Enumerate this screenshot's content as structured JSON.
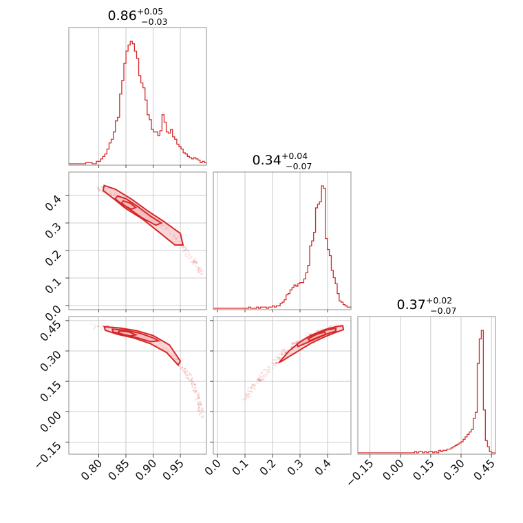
{
  "chart_data": {
    "type": "corner",
    "color": "#d62728",
    "contour_fill": "#f3b8bb",
    "grid": true,
    "parameters": [
      {
        "id": "p0",
        "title": {
          "median": "0.86",
          "plus": "+0.05",
          "minus": "−0.03"
        },
        "range": [
          0.745,
          0.998
        ],
        "ticks": [
          {
            "v": 0.8,
            "label": "0.80"
          },
          {
            "v": 0.85,
            "label": "0.85"
          },
          {
            "v": 0.9,
            "label": "0.90"
          },
          {
            "v": 0.95,
            "label": "0.95"
          }
        ],
        "hist": {
          "x0": 0.745,
          "x1": 0.998,
          "counts": [
            0,
            0,
            0,
            0,
            0,
            0,
            0,
            0,
            0.01,
            0.01,
            0.01,
            0,
            0,
            0.02,
            0.02,
            0.04,
            0.06,
            0.08,
            0.12,
            0.17,
            0.2,
            0.26,
            0.35,
            0.38,
            0.57,
            0.68,
            0.82,
            0.92,
            0.97,
            1.0,
            0.98,
            0.92,
            0.86,
            0.72,
            0.66,
            0.62,
            0.52,
            0.4,
            0.36,
            0.28,
            0.26,
            0.26,
            0.23,
            0.27,
            0.4,
            0.34,
            0.26,
            0.25,
            0.28,
            0.22,
            0.2,
            0.16,
            0.14,
            0.12,
            0.09,
            0.08,
            0.06,
            0.05,
            0.04,
            0.05,
            0.04,
            0.03,
            0.01,
            0.02,
            0.01
          ]
        }
      },
      {
        "id": "p1",
        "title": {
          "median": "0.34",
          "plus": "+0.04",
          "minus": "−0.07"
        },
        "range": [
          -0.015,
          0.485
        ],
        "ticks": [
          {
            "v": 0.0,
            "label": "0.0"
          },
          {
            "v": 0.1,
            "label": "0.1"
          },
          {
            "v": 0.2,
            "label": "0.2"
          },
          {
            "v": 0.3,
            "label": "0.3"
          },
          {
            "v": 0.4,
            "label": "0.4"
          }
        ],
        "hist": {
          "x0": -0.015,
          "x1": 0.485,
          "counts": [
            0,
            0,
            0,
            0,
            0,
            0,
            0,
            0,
            0,
            0,
            0,
            0,
            0,
            0,
            0,
            0,
            0,
            0,
            0.01,
            0,
            0,
            0,
            0.01,
            0,
            0.01,
            0.01,
            0.01,
            0,
            0.01,
            0.01,
            0.02,
            0.01,
            0.02,
            0.02,
            0.04,
            0.05,
            0.07,
            0.11,
            0.12,
            0.15,
            0.17,
            0.19,
            0.18,
            0.2,
            0.21,
            0.21,
            0.24,
            0.29,
            0.35,
            0.51,
            0.55,
            0.62,
            0.82,
            0.85,
            0.87,
            1.0,
            0.98,
            0.57,
            0.48,
            0.43,
            0.31,
            0.25,
            0.2,
            0.12,
            0.06,
            0.05,
            0.03,
            0.02,
            0.01,
            0.01
          ]
        }
      },
      {
        "id": "p2",
        "title": {
          "median": "0.37",
          "plus": "+0.02",
          "minus": "−0.07"
        },
        "range": [
          -0.21,
          0.47
        ],
        "ticks": [
          {
            "v": -0.15,
            "label": "−0.15"
          },
          {
            "v": 0.0,
            "label": "0.00"
          },
          {
            "v": 0.15,
            "label": "0.15"
          },
          {
            "v": 0.3,
            "label": "0.30"
          },
          {
            "v": 0.45,
            "label": "0.45"
          }
        ],
        "hist": {
          "x0": -0.21,
          "x1": 0.47,
          "counts": [
            0,
            0,
            0,
            0,
            0,
            0,
            0,
            0,
            0,
            0,
            0,
            0,
            0,
            0,
            0,
            0,
            0,
            0,
            0,
            0,
            0,
            0,
            0,
            0,
            0,
            0,
            0,
            0,
            0.01,
            0,
            0.01,
            0.01,
            0,
            0.01,
            0,
            0.01,
            0.01,
            0,
            0.01,
            0,
            0.02,
            0.01,
            0.02,
            0.02,
            0.03,
            0.03,
            0.04,
            0.05,
            0.06,
            0.07,
            0.08,
            0.09,
            0.11,
            0.13,
            0.15,
            0.17,
            0.19,
            0.28,
            0.33,
            0.73,
            0.93,
            1.0,
            0.35,
            0.1,
            0.05,
            0.01,
            0,
            0
          ]
        }
      }
    ],
    "pairs": [
      {
        "x": "p0",
        "y": "p1",
        "y_ticks": [
          {
            "v": 0.0,
            "label": "0.0"
          },
          {
            "v": 0.1,
            "label": "0.1"
          },
          {
            "v": 0.2,
            "label": "0.2"
          },
          {
            "v": 0.3,
            "label": "0.3"
          },
          {
            "v": 0.4,
            "label": "0.4"
          }
        ],
        "ridge": [
          [
            0.8,
            0.43
          ],
          [
            0.83,
            0.405
          ],
          [
            0.86,
            0.37
          ],
          [
            0.89,
            0.33
          ],
          [
            0.92,
            0.29
          ],
          [
            0.95,
            0.225
          ],
          [
            0.975,
            0.16
          ],
          [
            0.99,
            0.11
          ]
        ],
        "contours": [
          {
            "level": "outer",
            "points": [
              [
                0.81,
                0.436
              ],
              [
                0.83,
                0.423
              ],
              [
                0.86,
                0.387
              ],
              [
                0.89,
                0.344
              ],
              [
                0.92,
                0.305
              ],
              [
                0.95,
                0.262
              ],
              [
                0.955,
                0.22
              ],
              [
                0.94,
                0.22
              ],
              [
                0.91,
                0.268
              ],
              [
                0.88,
                0.315
              ],
              [
                0.85,
                0.352
              ],
              [
                0.825,
                0.392
              ],
              [
                0.808,
                0.418
              ]
            ]
          },
          {
            "level": "middle",
            "points": [
              [
                0.835,
                0.398
              ],
              [
                0.85,
                0.388
              ],
              [
                0.87,
                0.362
              ],
              [
                0.895,
                0.325
              ],
              [
                0.915,
                0.3
              ],
              [
                0.905,
                0.292
              ],
              [
                0.88,
                0.318
              ],
              [
                0.86,
                0.346
              ],
              [
                0.84,
                0.372
              ],
              [
                0.83,
                0.388
              ]
            ]
          },
          {
            "level": "inner",
            "points": [
              [
                0.845,
                0.38
              ],
              [
                0.858,
                0.372
              ],
              [
                0.868,
                0.356
              ],
              [
                0.86,
                0.35
              ],
              [
                0.85,
                0.36
              ],
              [
                0.842,
                0.372
              ]
            ]
          }
        ]
      },
      {
        "x": "p0",
        "y": "p2",
        "y_ticks": [
          {
            "v": -0.15,
            "label": "−0.15"
          },
          {
            "v": 0.0,
            "label": "0.00"
          },
          {
            "v": 0.15,
            "label": "0.15"
          },
          {
            "v": 0.3,
            "label": "0.30"
          },
          {
            "v": 0.45,
            "label": "0.45"
          }
        ],
        "ridge": [
          [
            0.79,
            0.42
          ],
          [
            0.82,
            0.415
          ],
          [
            0.85,
            0.4
          ],
          [
            0.88,
            0.37
          ],
          [
            0.91,
            0.33
          ],
          [
            0.94,
            0.27
          ],
          [
            0.96,
            0.2
          ],
          [
            0.975,
            0.13
          ],
          [
            0.985,
            0.05
          ],
          [
            0.99,
            -0.02
          ]
        ],
        "contours": [
          {
            "level": "outer",
            "points": [
              [
                0.81,
                0.42
              ],
              [
                0.84,
                0.413
              ],
              [
                0.87,
                0.4
              ],
              [
                0.9,
                0.376
              ],
              [
                0.93,
                0.33
              ],
              [
                0.95,
                0.25
              ],
              [
                0.946,
                0.23
              ],
              [
                0.925,
                0.292
              ],
              [
                0.895,
                0.336
              ],
              [
                0.865,
                0.364
              ],
              [
                0.835,
                0.382
              ],
              [
                0.812,
                0.402
              ]
            ]
          },
          {
            "level": "middle",
            "points": [
              [
                0.825,
                0.408
              ],
              [
                0.85,
                0.402
              ],
              [
                0.875,
                0.388
              ],
              [
                0.9,
                0.365
              ],
              [
                0.91,
                0.35
              ],
              [
                0.895,
                0.346
              ],
              [
                0.87,
                0.366
              ],
              [
                0.845,
                0.382
              ],
              [
                0.826,
                0.394
              ]
            ]
          },
          {
            "level": "inner",
            "points": [
              [
                0.838,
                0.4
              ],
              [
                0.856,
                0.394
              ],
              [
                0.868,
                0.38
              ],
              [
                0.858,
                0.374
              ],
              [
                0.842,
                0.384
              ],
              [
                0.836,
                0.392
              ]
            ]
          }
        ]
      },
      {
        "x": "p1",
        "y": "p2",
        "y_ticks": [],
        "ridge": [
          [
            0.09,
            0.05
          ],
          [
            0.13,
            0.12
          ],
          [
            0.17,
            0.19
          ],
          [
            0.21,
            0.25
          ],
          [
            0.25,
            0.3
          ],
          [
            0.29,
            0.34
          ],
          [
            0.33,
            0.37
          ],
          [
            0.37,
            0.395
          ],
          [
            0.41,
            0.41
          ],
          [
            0.45,
            0.42
          ]
        ],
        "contours": [
          {
            "level": "outer",
            "points": [
              [
                0.225,
                0.245
              ],
              [
                0.26,
                0.3
              ],
              [
                0.3,
                0.345
              ],
              [
                0.34,
                0.378
              ],
              [
                0.39,
                0.405
              ],
              [
                0.43,
                0.42
              ],
              [
                0.455,
                0.425
              ],
              [
                0.458,
                0.405
              ],
              [
                0.43,
                0.392
              ],
              [
                0.39,
                0.37
              ],
              [
                0.34,
                0.338
              ],
              [
                0.3,
                0.305
              ],
              [
                0.26,
                0.272
              ],
              [
                0.232,
                0.248
              ]
            ]
          },
          {
            "level": "middle",
            "points": [
              [
                0.29,
                0.335
              ],
              [
                0.32,
                0.362
              ],
              [
                0.36,
                0.388
              ],
              [
                0.4,
                0.405
              ],
              [
                0.43,
                0.412
              ],
              [
                0.43,
                0.398
              ],
              [
                0.4,
                0.385
              ],
              [
                0.36,
                0.362
              ],
              [
                0.32,
                0.338
              ],
              [
                0.292,
                0.322
              ]
            ]
          },
          {
            "level": "inner",
            "points": [
              [
                0.33,
                0.36
              ],
              [
                0.36,
                0.382
              ],
              [
                0.39,
                0.394
              ],
              [
                0.392,
                0.382
              ],
              [
                0.362,
                0.366
              ],
              [
                0.335,
                0.35
              ]
            ]
          }
        ]
      }
    ]
  }
}
